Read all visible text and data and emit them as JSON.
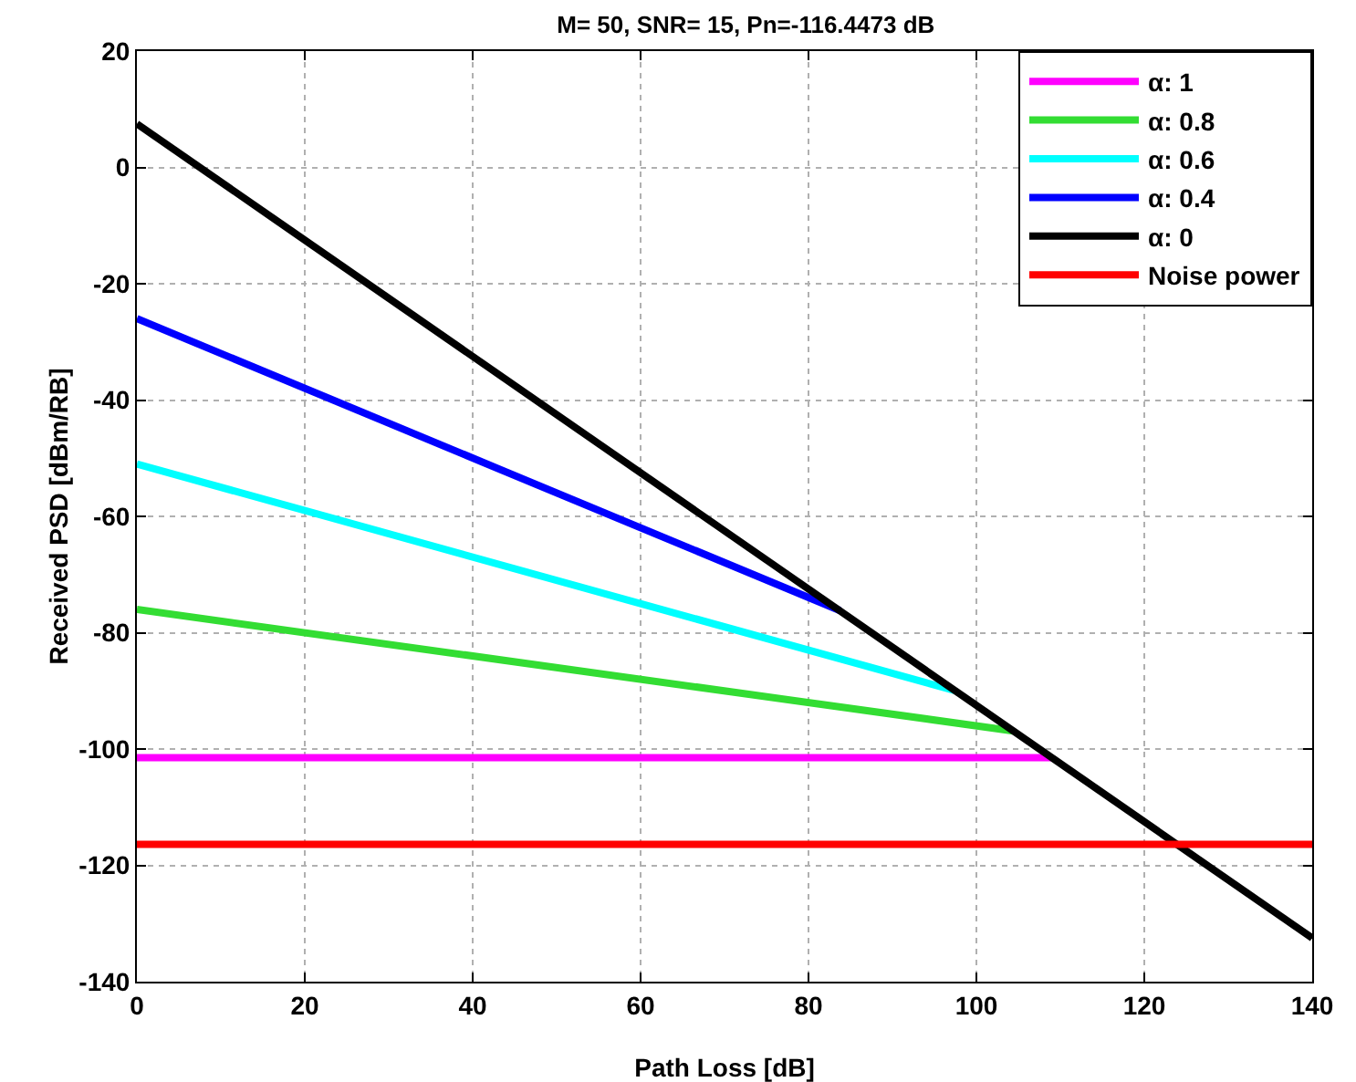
{
  "chart_data": {
    "type": "line",
    "title": "M= 50, SNR= 15, Pn=-116.4473 dB",
    "xlabel": "Path Loss [dB]",
    "ylabel": "Received PSD [dBm/RB]",
    "xlim": [
      0,
      140
    ],
    "xticks": [
      0,
      20,
      40,
      60,
      80,
      100,
      120,
      140
    ],
    "ylim": [
      -140,
      20
    ],
    "yticks": [
      -140,
      -120,
      -100,
      -80,
      -60,
      -40,
      -20,
      0,
      20
    ],
    "grid": true,
    "legend": "top right",
    "line_style": "solid",
    "marker": "none",
    "series": [
      {
        "name": "α: 1",
        "color": "#ff00ff",
        "x": [
          0,
          109
        ],
        "values": [
          -101.5,
          -101.5
        ]
      },
      {
        "name": "α: 0.8",
        "color": "#33dd33",
        "x": [
          0,
          104.4
        ],
        "values": [
          -76,
          -96.9
        ]
      },
      {
        "name": "α: 0.6",
        "color": "#00ffff",
        "x": [
          0,
          97.5
        ],
        "values": [
          -51,
          -90
        ]
      },
      {
        "name": "α: 0.4",
        "color": "#0000ff",
        "x": [
          0,
          83.75
        ],
        "values": [
          -26,
          -76.2
        ]
      },
      {
        "name": "α: 0",
        "color": "#000000",
        "x": [
          0,
          140
        ],
        "values": [
          7.5,
          -132.5
        ]
      },
      {
        "name": "Noise power",
        "color": "#ff0000",
        "x": [
          0,
          140
        ],
        "values": [
          -116.4,
          -116.4
        ]
      }
    ]
  }
}
